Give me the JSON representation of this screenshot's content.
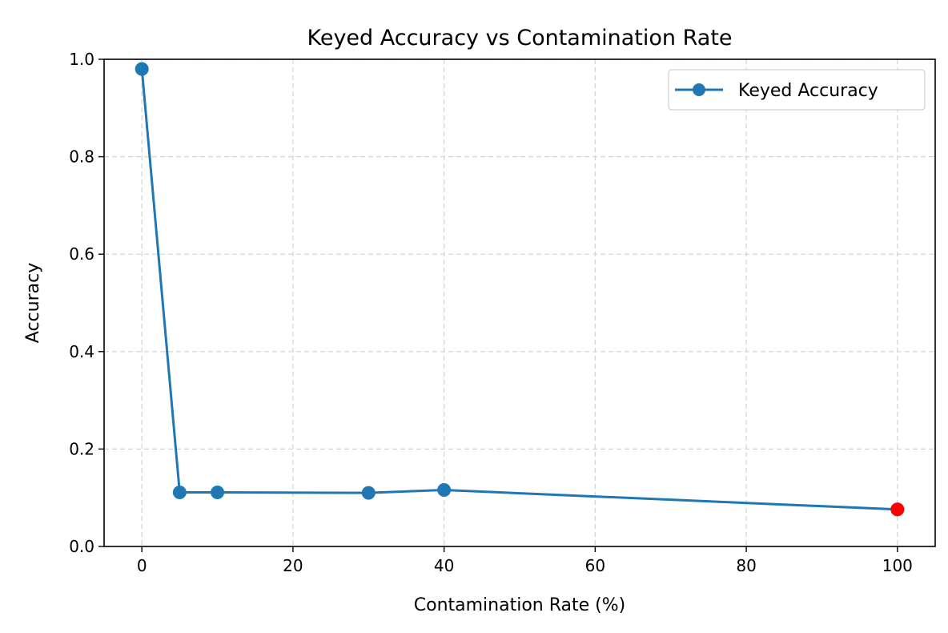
{
  "chart_data": {
    "type": "line",
    "title": "Keyed Accuracy vs Contamination Rate",
    "xlabel": "Contamination Rate (%)",
    "ylabel": "Accuracy",
    "xlim": [
      -5,
      105
    ],
    "ylim": [
      0,
      1.0
    ],
    "xticks": [
      0,
      20,
      40,
      60,
      80,
      100
    ],
    "xtick_labels": [
      "0",
      "20",
      "40",
      "60",
      "80",
      "100"
    ],
    "yticks": [
      0,
      0.2,
      0.4,
      0.6,
      0.8,
      1.0
    ],
    "ytick_labels": [
      "0.0",
      "0.2",
      "0.4",
      "0.6",
      "0.8",
      "1.0"
    ],
    "grid": true,
    "legend_position": "top-right",
    "series": [
      {
        "name": "Keyed Accuracy",
        "color": "#1f77b4",
        "x": [
          0,
          5,
          10,
          30,
          40,
          100
        ],
        "y": [
          0.98,
          0.111,
          0.111,
          0.11,
          0.116,
          0.076
        ]
      }
    ],
    "highlight": {
      "x": 100,
      "y": 0.076,
      "color": "#ff0000"
    }
  }
}
